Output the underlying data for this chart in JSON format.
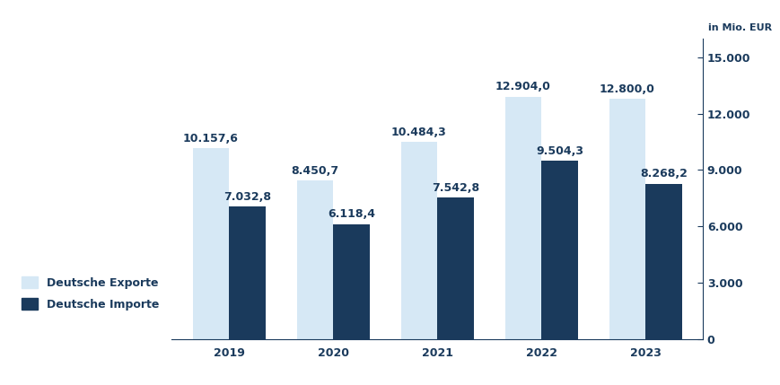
{
  "years": [
    "2019",
    "2020",
    "2021",
    "2022",
    "2023"
  ],
  "exports": [
    10157.6,
    8450.7,
    10484.3,
    12904.0,
    12800.0
  ],
  "imports": [
    7032.8,
    6118.4,
    7542.8,
    9504.3,
    8268.2
  ],
  "export_labels": [
    "10.157,6",
    "8.450,7",
    "10.484,3",
    "12.904,0",
    "12.800,0"
  ],
  "import_labels": [
    "7.032,8",
    "6.118,4",
    "7.542,8",
    "9.504,3",
    "8.268,2"
  ],
  "export_color": "#d6e8f5",
  "import_color": "#1a3a5c",
  "ylim": [
    0,
    16000
  ],
  "yticks": [
    0,
    3000,
    6000,
    9000,
    12000,
    15000
  ],
  "ytick_labels": [
    "0",
    "3.000",
    "6.000",
    "9.000",
    "12.000",
    "15.000"
  ],
  "ylabel": "in Mio. EUR",
  "legend_export": "Deutsche Exporte",
  "legend_import": "Deutsche Importe",
  "label_color": "#1a3a5c",
  "label_fontsize": 9,
  "tick_fontsize": 9,
  "bar_width": 0.35,
  "background_color": "#ffffff"
}
